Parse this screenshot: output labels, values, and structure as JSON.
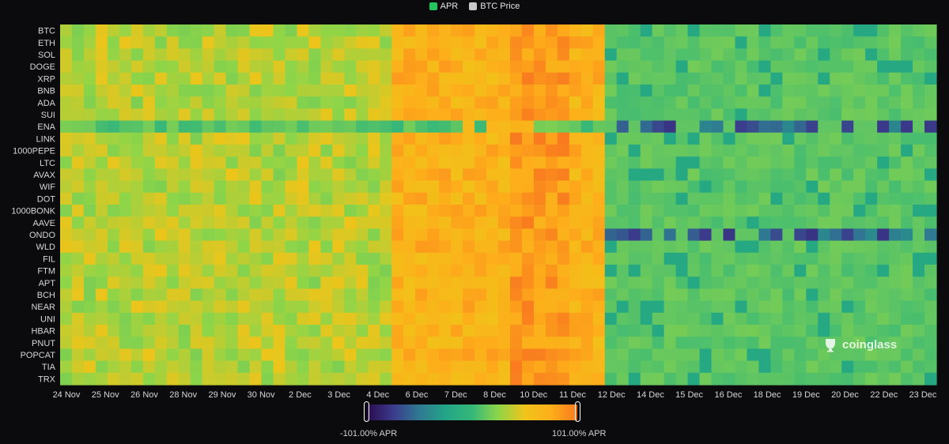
{
  "legend": [
    {
      "label": "APR",
      "color": "#22c55e"
    },
    {
      "label": "BTC Price",
      "color": "#c8c8c8"
    }
  ],
  "watermark": {
    "text": "coinglass",
    "icon": "coinglass-logo-icon"
  },
  "colorbar": {
    "min_label": "-101.00% APR",
    "max_label": "101.00% APR",
    "colors": [
      "#2a0b4f",
      "#3b3b8c",
      "#2f7a92",
      "#22a586",
      "#35b779",
      "#8fd548",
      "#f0c419",
      "#fdae1a",
      "#f97a1f"
    ]
  },
  "chart_data": {
    "type": "heatmap",
    "title": "",
    "xlabel": "",
    "ylabel": "",
    "zlim": [
      -101,
      101
    ],
    "z_unit": "% APR",
    "rows": [
      "BTC",
      "ETH",
      "SOL",
      "DOGE",
      "XRP",
      "BNB",
      "ADA",
      "SUI",
      "ENA",
      "LINK",
      "1000PEPE",
      "LTC",
      "AVAX",
      "WIF",
      "DOT",
      "1000BONK",
      "AAVE",
      "ONDO",
      "WLD",
      "FIL",
      "FTM",
      "APT",
      "BCH",
      "NEAR",
      "UNI",
      "HBAR",
      "PNUT",
      "POPCAT",
      "TIA",
      "TRX"
    ],
    "x_ticks": [
      "24 Nov",
      "25 Nov",
      "26 Nov",
      "28 Nov",
      "29 Nov",
      "30 Nov",
      "2 Dec",
      "3 Dec",
      "4 Dec",
      "6 Dec",
      "7 Dec",
      "8 Dec",
      "10 Dec",
      "11 Dec",
      "12 Dec",
      "14 Dec",
      "15 Dec",
      "16 Dec",
      "18 Dec",
      "19 Dec",
      "20 Dec",
      "22 Dec",
      "23 Dec"
    ],
    "approx_values": {
      "baseline_pre_dec10": 35,
      "baseline_post_dec10": 12,
      "peak_dec5_range": [
        80,
        101
      ],
      "hot_window_dec2_to_dec9": [
        55,
        85
      ],
      "ENA_post_dec10": [
        -101,
        -40
      ],
      "ONDO_post_dec10": [
        -101,
        -40
      ],
      "ENA_pre_dec10": 10
    }
  }
}
